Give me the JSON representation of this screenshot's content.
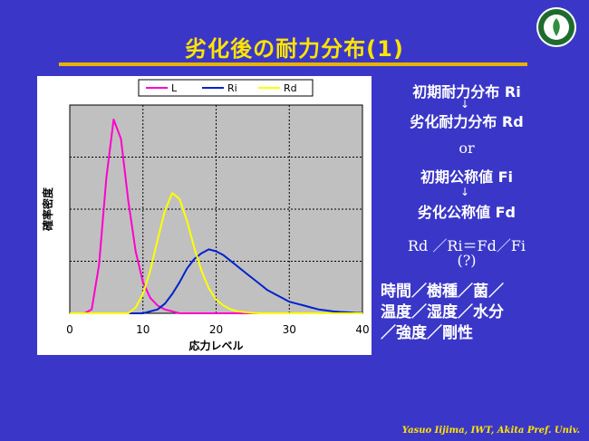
{
  "title": "劣化後の耐力分布(1)",
  "right": {
    "line1": "初期耐力分布 Ri",
    "line2": "劣化耐力分布 Rd",
    "line3": "or",
    "line4": "初期公称値 Fi",
    "line5": "劣化公称値 Fd",
    "line6": "Rd ／Ri＝Fd／Fi",
    "line7": "(?)"
  },
  "factors": [
    "時間／樹種／菌／",
    "温度／湿度／水分",
    "／強度／剛性"
  ],
  "footer": "Yasuo Iijima, IWT, Akita Pref.  Univ.",
  "colors": {
    "background": "#3a37c8",
    "title": "#ffe400",
    "rule": "#e8b400",
    "L": "#ff00cc",
    "Ri": "#0022cc",
    "Rd": "#ffff00"
  },
  "chart_data": {
    "type": "line",
    "xlabel": "応力レベル",
    "ylabel": "確率密度",
    "xlim": [
      0,
      40
    ],
    "xticks": [
      "0",
      "10",
      "20",
      "30",
      "40"
    ],
    "grid": true,
    "legend_position": "top",
    "x": [
      0,
      1,
      2,
      3,
      4,
      5,
      6,
      7,
      8,
      9,
      10,
      11,
      12,
      13,
      14,
      15,
      16,
      17,
      18,
      19,
      20,
      21,
      22,
      23,
      24,
      25,
      26,
      27,
      28,
      29,
      30,
      31,
      32,
      33,
      34,
      35,
      36,
      37,
      38,
      39,
      40
    ],
    "series": [
      {
        "name": "L",
        "color": "#ff00cc",
        "values": [
          0,
          0,
          0,
          0.02,
          0.25,
          0.7,
          1.0,
          0.9,
          0.58,
          0.32,
          0.16,
          0.08,
          0.04,
          0.02,
          0.01,
          0,
          0,
          0,
          0,
          0,
          0,
          0,
          0,
          0,
          0,
          0,
          0,
          0,
          0,
          0,
          0,
          0,
          0,
          0,
          0,
          0,
          0,
          0,
          0,
          0,
          0
        ]
      },
      {
        "name": "Ri",
        "color": "#0022cc",
        "values": [
          0,
          0,
          0,
          0,
          0,
          0,
          0,
          0,
          0,
          0,
          0,
          0.01,
          0.02,
          0.05,
          0.1,
          0.16,
          0.23,
          0.28,
          0.31,
          0.33,
          0.32,
          0.3,
          0.27,
          0.24,
          0.21,
          0.18,
          0.15,
          0.12,
          0.1,
          0.08,
          0.06,
          0.05,
          0.04,
          0.03,
          0.02,
          0.015,
          0.01,
          0.007,
          0.005,
          0.003,
          0.002
        ]
      },
      {
        "name": "Rd",
        "color": "#ffff00",
        "values": [
          0,
          0,
          0,
          0,
          0,
          0,
          0,
          0,
          0,
          0.03,
          0.1,
          0.22,
          0.38,
          0.53,
          0.62,
          0.59,
          0.48,
          0.34,
          0.22,
          0.13,
          0.07,
          0.04,
          0.02,
          0.01,
          0.005,
          0.002,
          0,
          0,
          0,
          0,
          0,
          0,
          0,
          0,
          0,
          0,
          0,
          0,
          0,
          0,
          0
        ]
      }
    ]
  }
}
